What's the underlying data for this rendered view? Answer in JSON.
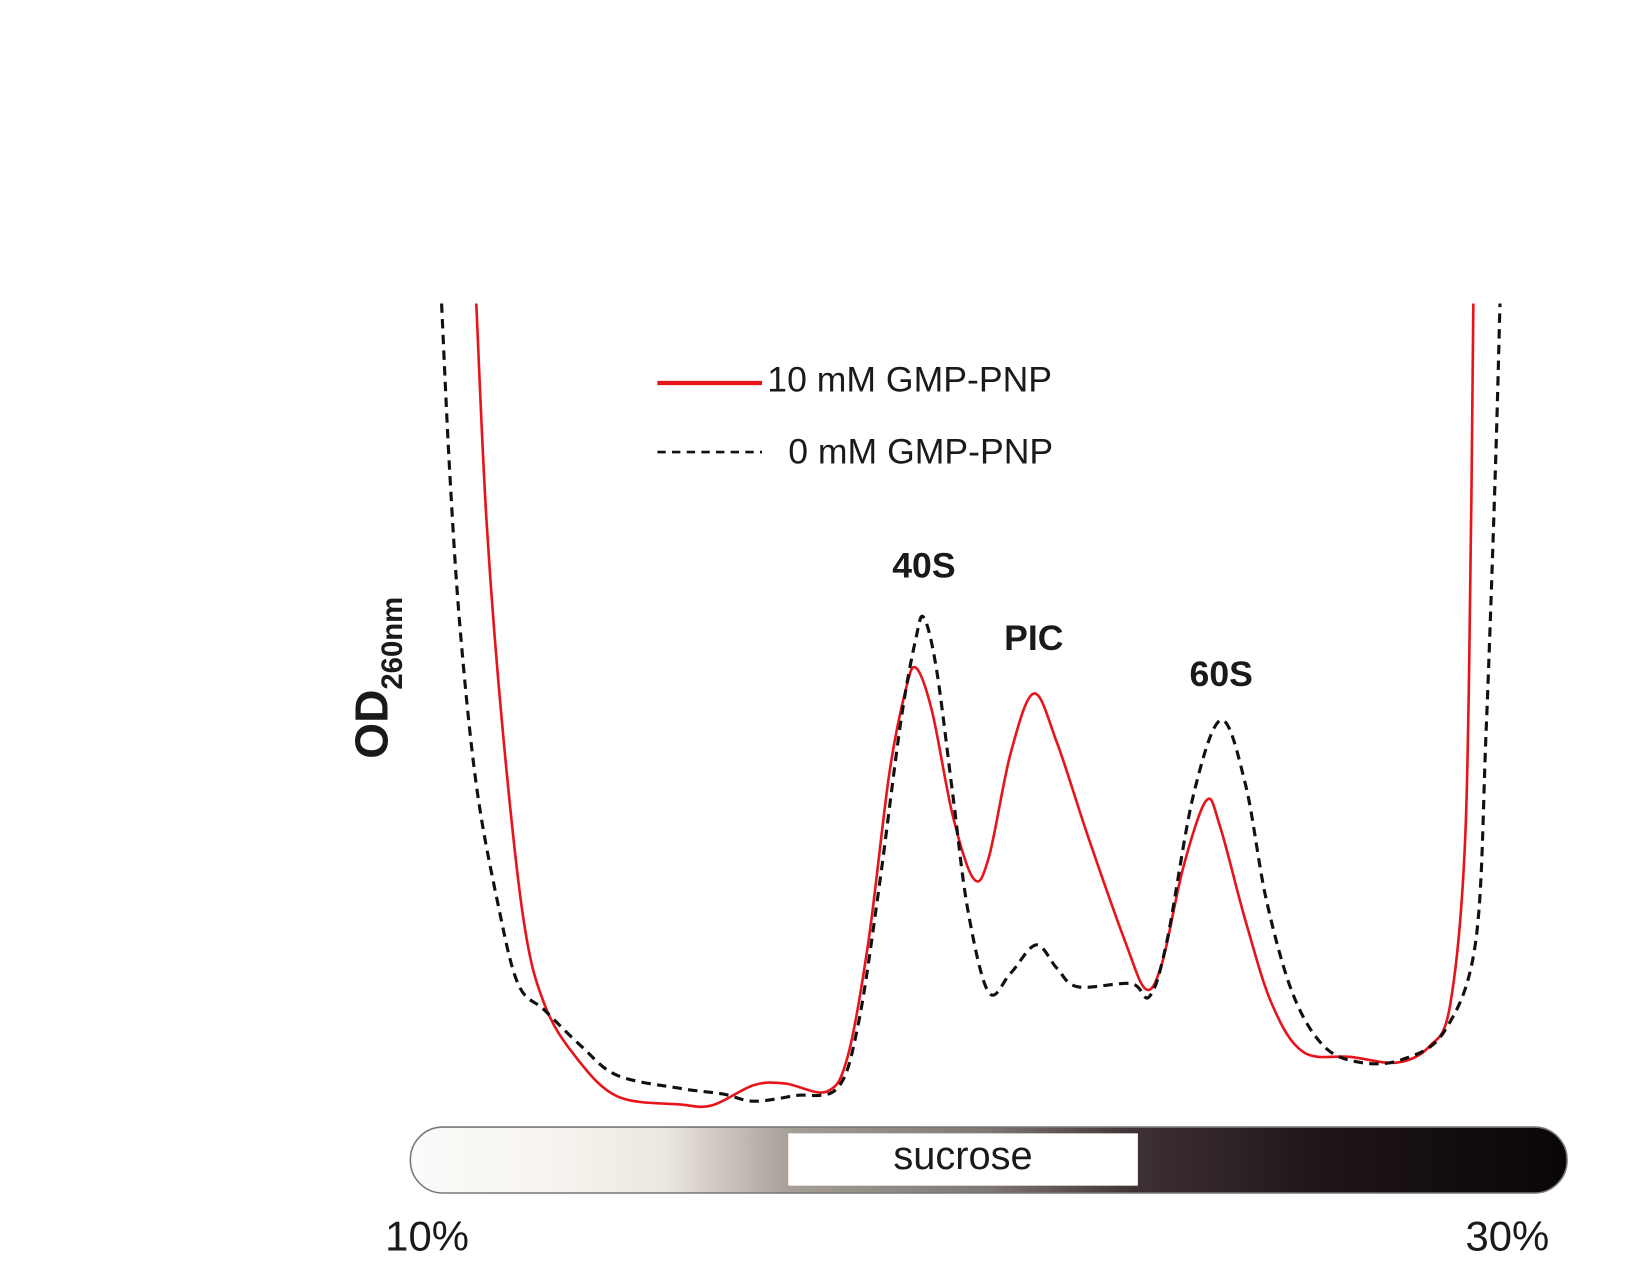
{
  "chart_data": {
    "type": "line",
    "title": "",
    "xlabel": "sucrose",
    "ylabel": "OD",
    "ylabel_subscript": "260nm",
    "x_tick_labels": {
      "start": "10%",
      "end": "30%"
    },
    "xlim": [
      0,
      100
    ],
    "ylim": [
      0,
      100
    ],
    "grid": false,
    "legend_position": "top-center",
    "series": [
      {
        "name": "10 mM GMP-PNP",
        "color": "#e8141c",
        "style": "solid",
        "x": [
          5.7,
          6.6,
          8.0,
          9.8,
          11.6,
          14.3,
          17.9,
          23.3,
          26.1,
          29.7,
          32.4,
          36.0,
          37.8,
          39.6,
          41.4,
          42.8,
          43.7,
          45.1,
          46.9,
          48.7,
          50.0,
          51.9,
          53.9,
          55.9,
          58.6,
          61.8,
          63.6,
          65.0,
          66.8,
          68.8,
          70.0,
          72.2,
          74.5,
          77.2,
          81.3,
          85.3,
          88.1,
          89.9,
          91.2,
          91.7,
          91.9
        ],
        "y": [
          100,
          72.7,
          46.8,
          23.4,
          13.0,
          6.5,
          1.6,
          0.6,
          0.5,
          3.0,
          3.2,
          2.2,
          6.5,
          20.8,
          41.6,
          51.9,
          54.8,
          49.4,
          36.4,
          28.6,
          31.2,
          44.2,
          51.6,
          45.5,
          33.8,
          20.8,
          14.9,
          18.2,
          29.9,
          38.3,
          35.1,
          23.4,
          13.0,
          7.1,
          6.5,
          5.8,
          7.8,
          13.0,
          33.8,
          72.7,
          100
        ]
      },
      {
        "name": "0 mM GMP-PNP",
        "color": "#111111",
        "style": "dashed",
        "x": [
          2.7,
          3.4,
          4.3,
          5.7,
          7.5,
          9.3,
          11.6,
          14.8,
          17.9,
          23.3,
          27.0,
          29.7,
          33.3,
          36.9,
          38.7,
          40.5,
          42.4,
          43.7,
          44.4,
          45.5,
          46.9,
          48.2,
          50.0,
          51.9,
          54.1,
          55.9,
          57.7,
          62.3,
          63.9,
          65.4,
          67.7,
          70.1,
          72.2,
          74.0,
          76.3,
          79.0,
          82.2,
          85.8,
          89.4,
          92.1,
          93.0,
          93.8,
          94.2
        ],
        "y": [
          100,
          79.2,
          59.7,
          40.3,
          26.0,
          15.6,
          12.3,
          7.8,
          4.2,
          2.6,
          1.9,
          1.0,
          1.7,
          2.6,
          10.4,
          27.3,
          48.1,
          58.4,
          61.0,
          54.5,
          39.0,
          24.7,
          14.5,
          16.9,
          20.4,
          17.5,
          15.2,
          15.6,
          14.0,
          20.8,
          39.0,
          48.3,
          40.3,
          26.0,
          14.3,
          7.8,
          5.8,
          6.2,
          9.7,
          20.8,
          46.8,
          79.2,
          100
        ]
      }
    ],
    "annotations": [
      {
        "text": "40S",
        "x": 44.4,
        "y": 66
      },
      {
        "text": "PIC",
        "x": 53.9,
        "y": 57
      },
      {
        "text": "60S",
        "x": 70.1,
        "y": 52.5
      }
    ]
  }
}
